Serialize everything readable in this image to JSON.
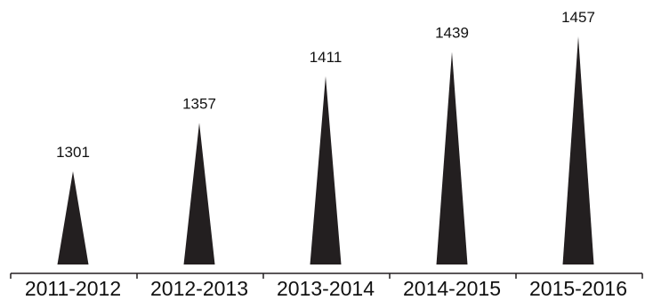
{
  "chart_data": {
    "type": "bar",
    "mark": "triangle",
    "categories": [
      "2011-2012",
      "2012-2013",
      "2013-2014",
      "2014-2015",
      "2015-2016"
    ],
    "values": [
      1301,
      1357,
      1411,
      1439,
      1457
    ],
    "data_labels": [
      "1301",
      "1357",
      "1411",
      "1439",
      "1457"
    ],
    "title": "",
    "xlabel": "",
    "ylabel": "",
    "y_axis_visible": false,
    "grid": false,
    "legend": "none"
  },
  "colors": {
    "mark": "#231f20",
    "axis": "#231f20",
    "text": "#111111",
    "background": "#ffffff"
  }
}
